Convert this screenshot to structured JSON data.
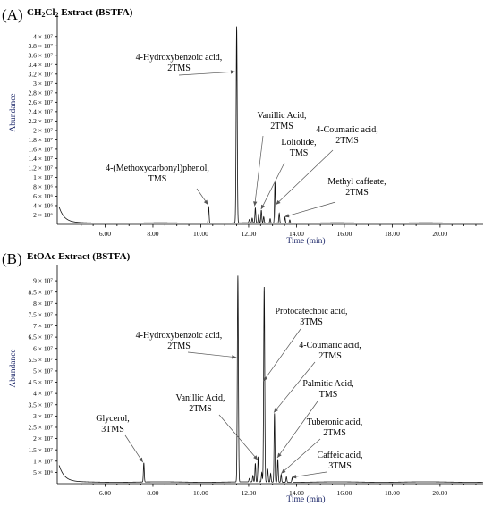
{
  "chart_data": [
    {
      "type": "line",
      "panel_letter": "(A)",
      "title_html": "CH<tspan font-size=\"8\" dy=\"2\">2</tspan><tspan dy=\"-2\">Cl</tspan><tspan font-size=\"8\" dy=\"2\">2</tspan><tspan dy=\"-2\"> Extract (BSTFA)</tspan>",
      "xlabel": "Time (min)",
      "ylabel": "Abundance",
      "xlim": [
        4.0,
        21.8
      ],
      "ylim": [
        0,
        43000000.0
      ],
      "xticks": [
        6,
        8,
        10,
        12,
        14,
        16,
        18,
        20
      ],
      "xtick_labels": [
        "6.00",
        "8.00",
        "10.00",
        "12.00",
        "14.00",
        "16.00",
        "18.00",
        "20.00"
      ],
      "yticks": [
        2000000,
        4000000,
        6000000,
        8000000,
        10000000,
        12000000,
        14000000,
        16000000,
        18000000,
        20000000,
        22000000,
        24000000,
        26000000,
        28000000,
        30000000,
        32000000,
        34000000,
        36000000,
        38000000,
        40000000
      ],
      "ytick_labels": [
        "2 × 10⁶",
        "4 × 10⁶",
        "6 × 10⁶",
        "8 × 10⁶",
        "1 × 10⁷",
        "1.2 × 10⁷",
        "1.4 × 10⁷",
        "1.6 × 10⁷",
        "1.8 × 10⁷",
        "2 × 10⁷",
        "2.2 × 10⁷",
        "2.4 × 10⁷",
        "2.6 × 10⁷",
        "2.8 × 10⁷",
        "3 × 10⁷",
        "3.2 × 10⁷",
        "3.4 × 10⁷",
        "3.6 × 10⁷",
        "3.8 × 10⁷",
        "4 × 10⁷"
      ],
      "baseline": 300000,
      "peaks": [
        {
          "x": 10.33,
          "y": 3600000
        },
        {
          "x": 11.5,
          "y": 41800000
        },
        {
          "x": 12.03,
          "y": 700000
        },
        {
          "x": 12.15,
          "y": 1000000
        },
        {
          "x": 12.28,
          "y": 3200000
        },
        {
          "x": 12.42,
          "y": 1900000
        },
        {
          "x": 12.53,
          "y": 2700000
        },
        {
          "x": 12.63,
          "y": 1300000
        },
        {
          "x": 12.9,
          "y": 900000
        },
        {
          "x": 13.1,
          "y": 8700000
        },
        {
          "x": 13.28,
          "y": 2100000
        },
        {
          "x": 13.52,
          "y": 1200000
        },
        {
          "x": 13.72,
          "y": 700000
        }
      ],
      "annotations": [
        {
          "lines": [
            "4-Hydroxybenzoic acid,",
            "2TMS"
          ],
          "target_x": 11.44,
          "target_y": 32500000
        },
        {
          "lines": [
            "Vanillic Acid,",
            "2TMS"
          ],
          "target_x": 12.25,
          "target_y": 3900000
        },
        {
          "lines": [
            "Loliolide,",
            "TMS"
          ],
          "target_x": 12.52,
          "target_y": 3200000
        },
        {
          "lines": [
            "4-Coumaric acid,",
            "2TMS"
          ],
          "target_x": 13.14,
          "target_y": 4200000
        },
        {
          "lines": [
            "4-(Methoxycarbonyl)phenol,",
            "TMS"
          ],
          "target_x": 10.3,
          "target_y": 4200000
        },
        {
          "lines": [
            "Methyl caffeate,",
            "2TMS"
          ],
          "target_x": 13.5,
          "target_y": 1600000
        }
      ]
    },
    {
      "type": "line",
      "panel_letter": "(B)",
      "title_html": "EtOAc Extract (BSTFA)",
      "xlabel": "Time (min)",
      "ylabel": "Abundance",
      "xlim": [
        4.0,
        21.8
      ],
      "ylim": [
        0,
        94000000.0
      ],
      "xticks": [
        6,
        8,
        10,
        12,
        14,
        16,
        18,
        20
      ],
      "xtick_labels": [
        "6.00",
        "8.00",
        "10.00",
        "12.00",
        "14.00",
        "16.00",
        "18.00",
        "20.00"
      ],
      "yticks": [
        5000000,
        10000000,
        15000000,
        20000000,
        25000000,
        30000000,
        35000000,
        40000000,
        45000000,
        50000000,
        55000000,
        60000000,
        65000000,
        70000000,
        75000000,
        80000000,
        85000000,
        90000000
      ],
      "ytick_labels": [
        "5 × 10⁶",
        "1 × 10⁷",
        "1.5 × 10⁷",
        "2 × 10⁷",
        "2.5 × 10⁷",
        "3 × 10⁷",
        "3.5 × 10⁷",
        "4 × 10⁷",
        "4.5 × 10⁷",
        "5 × 10⁷",
        "5.5 × 10⁷",
        "6 × 10⁷",
        "6.5 × 10⁷",
        "7 × 10⁷",
        "7.5 × 10⁷",
        "8 × 10⁷",
        "8.5 × 10⁷",
        "9 × 10⁷"
      ],
      "baseline": 700000,
      "peaks": [
        {
          "x": 7.62,
          "y": 8500000
        },
        {
          "x": 11.55,
          "y": 91500000
        },
        {
          "x": 12.03,
          "y": 1500000
        },
        {
          "x": 12.18,
          "y": 2800000
        },
        {
          "x": 12.28,
          "y": 8200000
        },
        {
          "x": 12.4,
          "y": 11200000
        },
        {
          "x": 12.55,
          "y": 4200000
        },
        {
          "x": 12.65,
          "y": 86500000
        },
        {
          "x": 12.8,
          "y": 5500000
        },
        {
          "x": 12.92,
          "y": 3800000
        },
        {
          "x": 13.08,
          "y": 30500000
        },
        {
          "x": 13.22,
          "y": 10200000
        },
        {
          "x": 13.36,
          "y": 3500000
        },
        {
          "x": 13.58,
          "y": 2400000
        },
        {
          "x": 13.82,
          "y": 2000000
        }
      ],
      "annotations": [
        {
          "lines": [
            "4-Hydroxybenzoic acid,",
            "2TMS"
          ],
          "target_x": 11.49,
          "target_y": 56000000
        },
        {
          "lines": [
            "Protocatechoic acid,",
            "3TMS"
          ],
          "target_x": 12.62,
          "target_y": 45500000
        },
        {
          "lines": [
            "4-Coumaric acid,",
            "2TMS"
          ],
          "target_x": 13.05,
          "target_y": 31500000
        },
        {
          "lines": [
            "Vanillic Acid,",
            "2TMS"
          ],
          "target_x": 12.38,
          "target_y": 10500000
        },
        {
          "lines": [
            "Palmitic Acid,",
            "TMS"
          ],
          "target_x": 13.2,
          "target_y": 11500000
        },
        {
          "lines": [
            "Glycerol,",
            "3TMS"
          ],
          "target_x": 7.58,
          "target_y": 9500000
        },
        {
          "lines": [
            "Tuberonic acid,",
            "2TMS"
          ],
          "target_x": 13.36,
          "target_y": 4500000
        },
        {
          "lines": [
            "Caffeic acid,",
            "3TMS"
          ],
          "target_x": 13.8,
          "target_y": 2800000
        }
      ]
    }
  ]
}
